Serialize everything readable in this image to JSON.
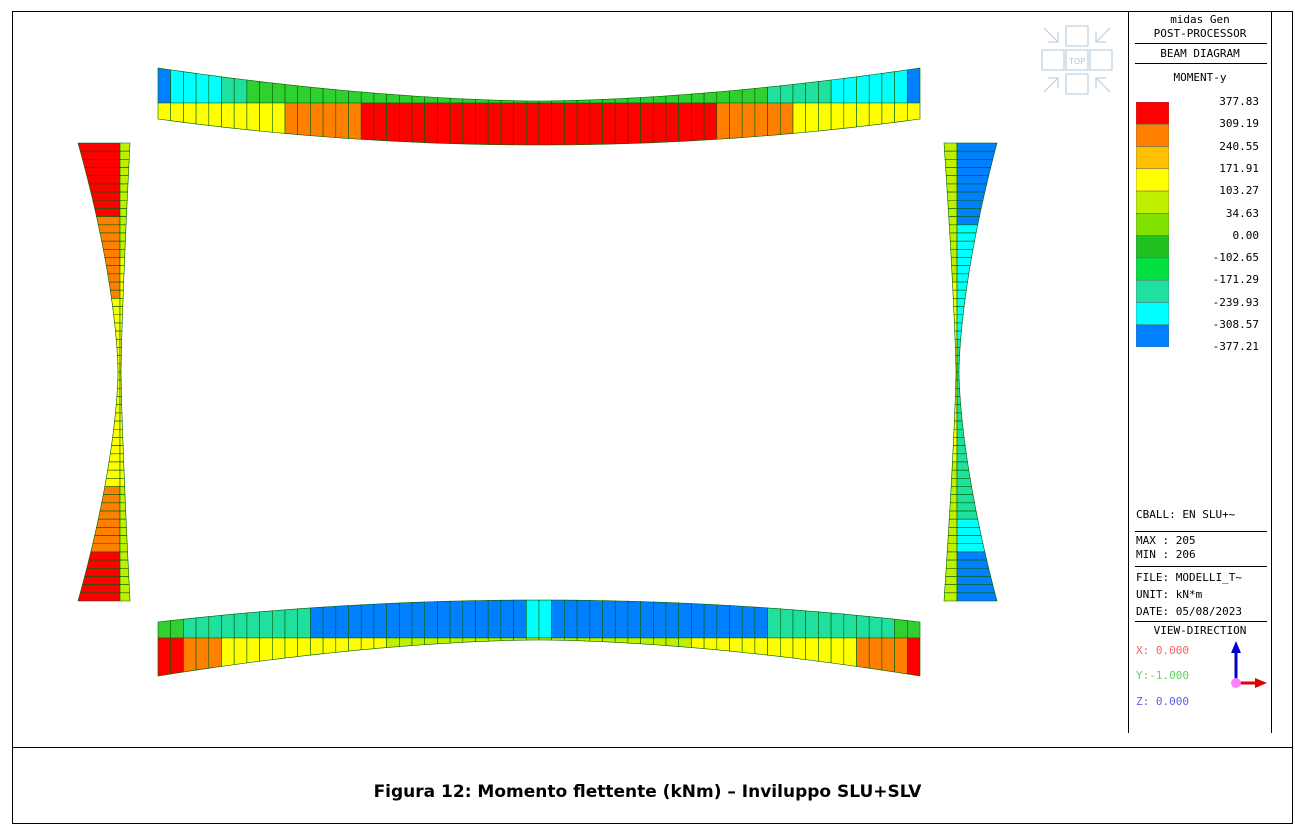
{
  "panel": {
    "app": "midas Gen",
    "module": "POST-PROCESSOR",
    "diagram": "BEAM DIAGRAM",
    "component": "MOMENT-y",
    "combination": "CBALL: EN SLU+~",
    "max": "MAX : 205",
    "min": "MIN : 206",
    "file": "FILE: MODELLI_T~",
    "unit": "UNIT: kN*m",
    "date": "DATE: 05/08/2023",
    "view_title": "VIEW-DIRECTION",
    "view_x": "X: 0.000",
    "view_y": "Y:-1.000",
    "view_z": "Z: 0.000"
  },
  "viewcube": {
    "label": "TOP"
  },
  "legend": {
    "values": [
      "377.83",
      "309.19",
      "240.55",
      "171.91",
      "103.27",
      "34.63",
      "0.00",
      "-102.65",
      "-171.29",
      "-239.93",
      "-308.57",
      "-377.21"
    ],
    "colors": [
      "#ff0000",
      "#ff8000",
      "#ffc000",
      "#ffff00",
      "#c0f000",
      "#80e000",
      "#20c020",
      "#00e040",
      "#20e0a0",
      "#00ffff",
      "#0080ff"
    ]
  },
  "caption": "Figura 12: Momento flettente (kNm) – Inviluppo SLU+SLV",
  "colors": {
    "red": "#ff0000",
    "orange": "#ff8000",
    "yellow": "#ffff00",
    "ygreen": "#c0f000",
    "green": "#30d030",
    "mint": "#20e0a0",
    "cyan": "#00ffff",
    "blue": "#0080ff",
    "outline": "#006000"
  }
}
